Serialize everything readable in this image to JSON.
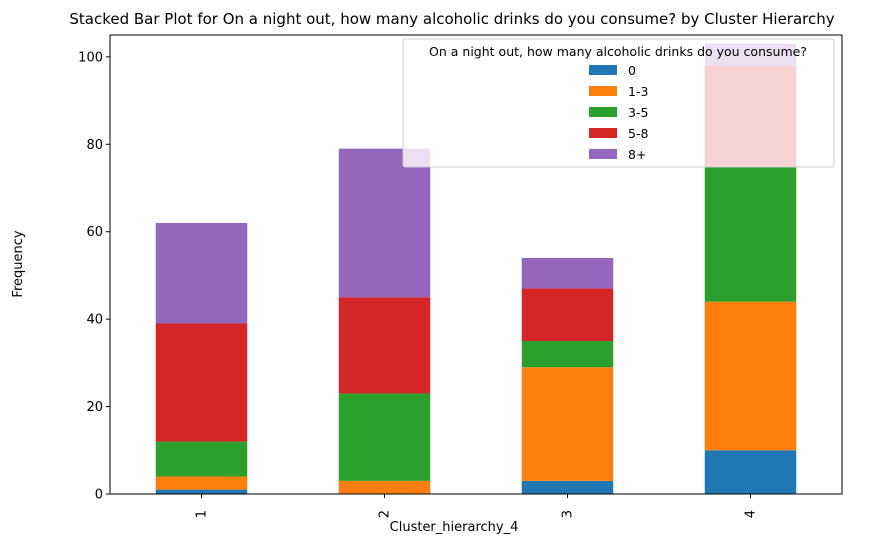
{
  "chart_data": {
    "type": "bar",
    "stacked": true,
    "title": "Stacked Bar Plot for On a night out, how many alcoholic drinks do you consume? by Cluster Hierarchy",
    "xlabel": "Cluster_hierarchy_4",
    "ylabel": "Frequency",
    "categories": [
      "1",
      "2",
      "3",
      "4"
    ],
    "ylim": [
      0,
      105
    ],
    "yticks": [
      0,
      20,
      40,
      60,
      80,
      100
    ],
    "grid": false,
    "legend": {
      "title": "On a night out, how many alcoholic drinks do you consume?",
      "placement": "top-right"
    },
    "series": [
      {
        "name": "0",
        "color": "#1f77b4",
        "values": [
          1,
          0,
          3,
          10
        ]
      },
      {
        "name": "1-3",
        "color": "#ff7f0e",
        "values": [
          3,
          3,
          26,
          34
        ]
      },
      {
        "name": "3-5",
        "color": "#2ca02c",
        "values": [
          8,
          20,
          6,
          31
        ]
      },
      {
        "name": "5-8",
        "color": "#d62728",
        "values": [
          27,
          22,
          12,
          23
        ]
      },
      {
        "name": "8+",
        "color": "#9467bd",
        "values": [
          23,
          34,
          7,
          5
        ]
      }
    ]
  }
}
